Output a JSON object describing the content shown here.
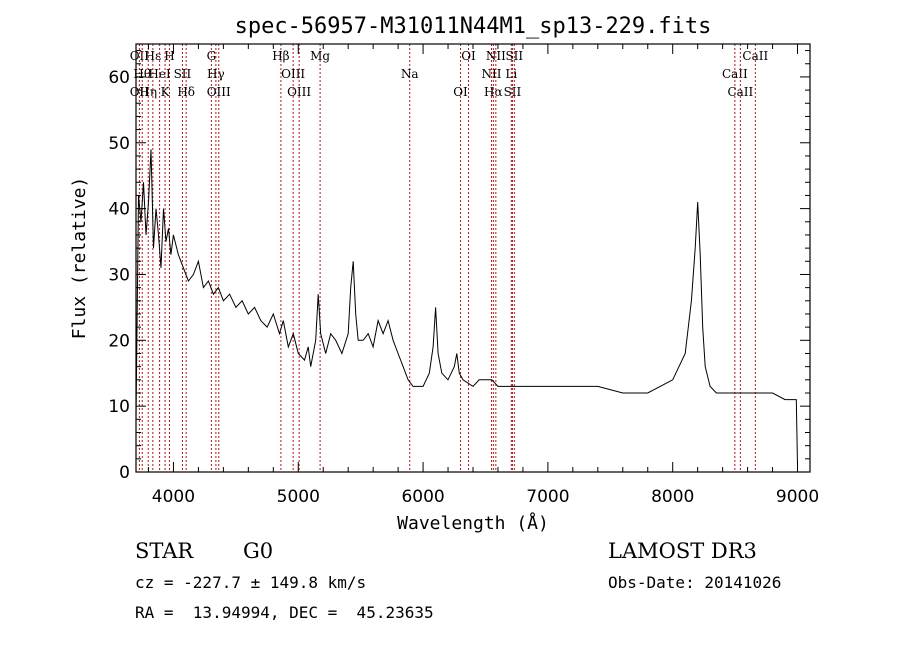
{
  "chart_data": {
    "type": "line",
    "title": "spec-56957-M31011N44M1_sp13-229.fits",
    "xlabel": "Wavelength (Å)",
    "ylabel": "Flux (relative)",
    "xlim": [
      3700,
      9100
    ],
    "ylim": [
      0,
      65
    ],
    "xticks": [
      4000,
      5000,
      6000,
      7000,
      8000,
      9000
    ],
    "yticks": [
      0,
      10,
      20,
      30,
      40,
      50,
      60
    ],
    "line_color": "#000000",
    "marker_color": "#b01818",
    "spectrum": {
      "x": [
        3700,
        3720,
        3740,
        3760,
        3780,
        3800,
        3820,
        3840,
        3860,
        3880,
        3900,
        3920,
        3940,
        3960,
        3980,
        4000,
        4040,
        4080,
        4120,
        4160,
        4200,
        4240,
        4280,
        4320,
        4360,
        4400,
        4450,
        4500,
        4550,
        4600,
        4650,
        4700,
        4750,
        4800,
        4850,
        4880,
        4920,
        4960,
        5000,
        5050,
        5080,
        5100,
        5140,
        5160,
        5180,
        5220,
        5260,
        5300,
        5350,
        5400,
        5420,
        5440,
        5460,
        5480,
        5520,
        5560,
        5600,
        5640,
        5680,
        5720,
        5760,
        5800,
        5840,
        5880,
        5920,
        6000,
        6050,
        6080,
        6100,
        6120,
        6150,
        6200,
        6250,
        6270,
        6290,
        6320,
        6400,
        6450,
        6500,
        6550,
        6600,
        6700,
        6800,
        6900,
        7000,
        7200,
        7400,
        7600,
        7800,
        7900,
        8000,
        8100,
        8150,
        8180,
        8200,
        8220,
        8240,
        8260,
        8300,
        8350,
        8400,
        8500,
        8600,
        8700,
        8800,
        8900,
        8990,
        9000
      ],
      "y": [
        8,
        42,
        38,
        44,
        36,
        41,
        49,
        34,
        40,
        36,
        31,
        40,
        35,
        37,
        33,
        36,
        33,
        31,
        29,
        30,
        32,
        28,
        29,
        27,
        28,
        26,
        27,
        25,
        26,
        24,
        25,
        23,
        22,
        24,
        21,
        23,
        19,
        21,
        18,
        17,
        19,
        16,
        20,
        27,
        21,
        18,
        21,
        20,
        18,
        21,
        28,
        32,
        24,
        20,
        20,
        21,
        19,
        23,
        21,
        23,
        20,
        18,
        16,
        14,
        13,
        13,
        15,
        19,
        25,
        18,
        15,
        14,
        16,
        18,
        15,
        14,
        13,
        14,
        14,
        14,
        13,
        13,
        13,
        13,
        13,
        13,
        13,
        12,
        12,
        13,
        14,
        18,
        26,
        34,
        41,
        33,
        22,
        16,
        13,
        12,
        12,
        12,
        12,
        12,
        12,
        11,
        11,
        1
      ]
    },
    "line_markers": [
      {
        "wavelength": 3727,
        "labels": [
          "OII",
          "OII"
        ]
      },
      {
        "wavelength": 3750,
        "labels": [
          "Hθ"
        ]
      },
      {
        "wavelength": 3798,
        "labels": [
          "Hη"
        ]
      },
      {
        "wavelength": 3835,
        "labels": [
          "Hε"
        ]
      },
      {
        "wavelength": 3889,
        "labels": [
          "HeI"
        ]
      },
      {
        "wavelength": 3933,
        "labels": [
          "K"
        ]
      },
      {
        "wavelength": 3968,
        "labels": [
          "H"
        ]
      },
      {
        "wavelength": 4072,
        "labels": [
          "SII"
        ]
      },
      {
        "wavelength": 4102,
        "labels": [
          "Hδ"
        ]
      },
      {
        "wavelength": 4304,
        "labels": [
          "G"
        ]
      },
      {
        "wavelength": 4340,
        "labels": [
          "Hγ"
        ]
      },
      {
        "wavelength": 4363,
        "labels": [
          "OIII"
        ]
      },
      {
        "wavelength": 4861,
        "labels": [
          "Hβ"
        ]
      },
      {
        "wavelength": 4959,
        "labels": [
          "OIII"
        ]
      },
      {
        "wavelength": 5007,
        "labels": [
          "OIII"
        ]
      },
      {
        "wavelength": 5175,
        "labels": [
          "Mg"
        ]
      },
      {
        "wavelength": 5893,
        "labels": [
          "Na"
        ]
      },
      {
        "wavelength": 6300,
        "labels": [
          "OI"
        ]
      },
      {
        "wavelength": 6364,
        "labels": [
          "OI"
        ]
      },
      {
        "wavelength": 6548,
        "labels": [
          "NII"
        ]
      },
      {
        "wavelength": 6563,
        "labels": [
          "Hα"
        ]
      },
      {
        "wavelength": 6583,
        "labels": [
          "NII"
        ]
      },
      {
        "wavelength": 6707,
        "labels": [
          "Li"
        ]
      },
      {
        "wavelength": 6716,
        "labels": [
          "SII"
        ]
      },
      {
        "wavelength": 6731,
        "labels": [
          "SII"
        ]
      },
      {
        "wavelength": 8498,
        "labels": [
          "CaII"
        ]
      },
      {
        "wavelength": 8542,
        "labels": [
          "CaII"
        ]
      },
      {
        "wavelength": 8662,
        "labels": [
          "CaII"
        ]
      }
    ]
  },
  "info": {
    "object_class": "STAR",
    "subclass": "G0",
    "survey": "LAMOST DR3",
    "cz_line": "cz = -227.7 ± 149.8 km/s",
    "obs_date": "Obs-Date: 20141026",
    "coords": "RA =  13.94994, DEC =  45.23635"
  }
}
